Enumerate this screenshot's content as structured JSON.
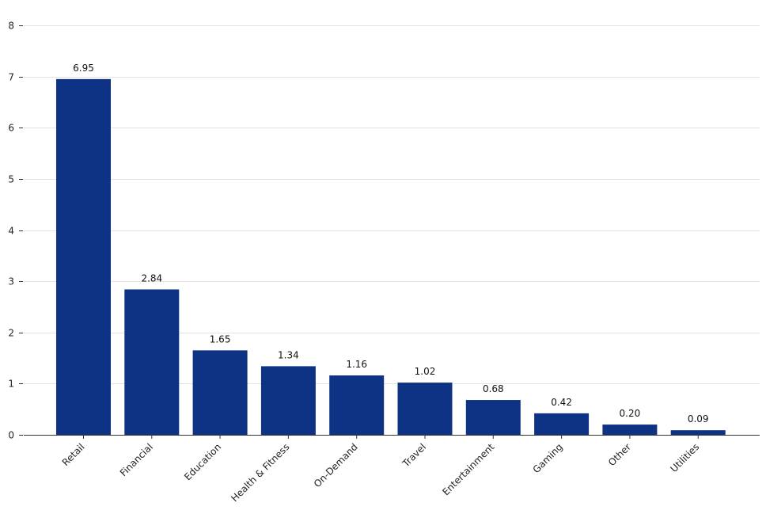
{
  "chart_data": {
    "type": "bar",
    "categories": [
      "Retail",
      "Financial",
      "Education",
      "Health & Fitness",
      "On-Demand",
      "Travel",
      "Entertainment",
      "Gaming",
      "Other",
      "Utilities"
    ],
    "values": [
      6.95,
      2.84,
      1.65,
      1.34,
      1.16,
      1.02,
      0.68,
      0.42,
      0.2,
      0.09
    ],
    "value_labels": [
      "6.95",
      "2.84",
      "1.65",
      "1.34",
      "1.16",
      "1.02",
      "0.68",
      "0.42",
      "0.20",
      "0.09"
    ],
    "ylim": [
      0,
      8
    ],
    "yticks": [
      0,
      1,
      2,
      3,
      4,
      5,
      6,
      7,
      8
    ],
    "title": "",
    "xlabel": "",
    "ylabel": "",
    "grid": "horizontal",
    "bar_color": "#0f3384"
  }
}
